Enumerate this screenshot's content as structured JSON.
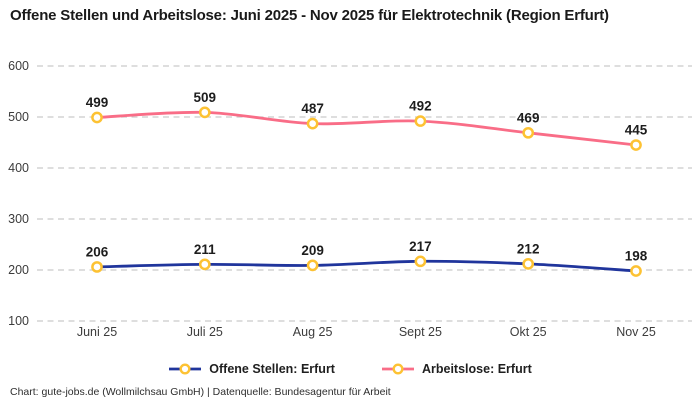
{
  "chart_data": {
    "type": "line",
    "title": "Offene Stellen und Arbeitslose: Juni 2025 - Nov 2025 für Elektrotechnik (Region Erfurt)",
    "categories": [
      "Juni 25",
      "Juli 25",
      "Aug 25",
      "Sept 25",
      "Okt 25",
      "Nov 25"
    ],
    "series": [
      {
        "name": "Offene Stellen: Erfurt",
        "values": [
          206,
          211,
          209,
          217,
          212,
          198
        ],
        "color": "#20359c"
      },
      {
        "name": "Arbeitslose: Erfurt",
        "values": [
          499,
          509,
          487,
          492,
          469,
          445
        ],
        "color": "#f96d87"
      }
    ],
    "xlabel": "",
    "ylabel": "",
    "ylim": [
      100,
      600
    ],
    "yticks": [
      100,
      200,
      300,
      400,
      500,
      600
    ],
    "grid": "horizontal-dashed",
    "legend_position": "bottom",
    "marker": {
      "fill": "#ffffff",
      "stroke": "#fdc233"
    },
    "colors": {
      "gridline": "#cbcbcb",
      "tick_label": "#3c3c3c",
      "data_label": "#1d1d1d"
    }
  },
  "footer": {
    "credit": "Chart: gute-jobs.de (Wollmilchsau GmbH) | Datenquelle: Bundesagentur für Arbeit"
  }
}
